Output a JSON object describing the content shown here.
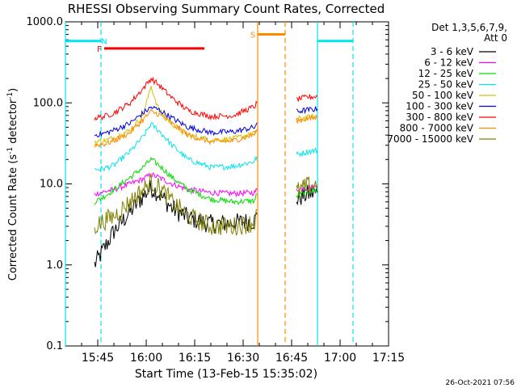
{
  "chart_data": {
    "type": "line",
    "title": "RHESSI Observing Summary Count Rates, Corrected",
    "xlabel": "Start Time (13-Feb-15 15:35:02)",
    "ylabel": "Corrected Count Rate (s^-1 detector^-1)",
    "ylabel_parts": {
      "main": "Corrected Count Rate (s",
      "sup1": "-1",
      "mid": " detector",
      "sup2": "-1",
      "end": ")"
    },
    "x_unit": "minutes since 15:35:02",
    "xlim": [
      0,
      100
    ],
    "ylim": [
      0.1,
      1000
    ],
    "yscale": "log",
    "x_ticks": [
      {
        "value": 10,
        "label": "15:45"
      },
      {
        "value": 25,
        "label": "16:00"
      },
      {
        "value": 40,
        "label": "16:15"
      },
      {
        "value": 55,
        "label": "16:30"
      },
      {
        "value": 70,
        "label": "16:45"
      },
      {
        "value": 85,
        "label": "17:00"
      },
      {
        "value": 100,
        "label": "17:15"
      }
    ],
    "y_ticks": [
      {
        "value": 0.1,
        "label": "0.1"
      },
      {
        "value": 1,
        "label": "1.0"
      },
      {
        "value": 10,
        "label": "10.0"
      },
      {
        "value": 100,
        "label": "100.0"
      },
      {
        "value": 1000,
        "label": "1000.0"
      }
    ],
    "legend": {
      "placement": "right",
      "header": [
        "Det 1,3,5,6,7,9,",
        "Att 0"
      ]
    },
    "series": [
      {
        "name": "3 - 6 keV",
        "color": "#000000",
        "points": [
          [
            9,
            1.0
          ],
          [
            12,
            1.6
          ],
          [
            15,
            2.6
          ],
          [
            20,
            4.5
          ],
          [
            24,
            7
          ],
          [
            26.5,
            9
          ],
          [
            29,
            7.5
          ],
          [
            33,
            5
          ],
          [
            38,
            3.8
          ],
          [
            45,
            3.2
          ],
          [
            52,
            3.3
          ],
          [
            58.5,
            3.5
          ],
          [
            59.3,
            4.2
          ],
          [
            70,
            null
          ],
          [
            71.5,
            6.5
          ],
          [
            75,
            7.5
          ],
          [
            78,
            7.8
          ],
          [
            80,
            null
          ]
        ]
      },
      {
        "name": "6 - 12 keV",
        "color": "#ff00ff",
        "points": [
          [
            9,
            7.5
          ],
          [
            12,
            8
          ],
          [
            15,
            8.5
          ],
          [
            20,
            10
          ],
          [
            24,
            11.5
          ],
          [
            26.5,
            13
          ],
          [
            29,
            12
          ],
          [
            33,
            10
          ],
          [
            38,
            8.5
          ],
          [
            45,
            7.8
          ],
          [
            52,
            7.6
          ],
          [
            58.5,
            7.8
          ],
          [
            59.3,
            8.5
          ],
          [
            70,
            null
          ],
          [
            71.5,
            8.5
          ],
          [
            75,
            9
          ],
          [
            78,
            9.2
          ],
          [
            80,
            null
          ]
        ]
      },
      {
        "name": "12 - 25 keV",
        "color": "#00dd00",
        "points": [
          [
            9,
            6
          ],
          [
            12,
            7
          ],
          [
            15,
            8.5
          ],
          [
            20,
            12
          ],
          [
            24,
            16
          ],
          [
            26.5,
            20
          ],
          [
            29,
            17
          ],
          [
            33,
            12
          ],
          [
            38,
            8.5
          ],
          [
            45,
            6.5
          ],
          [
            52,
            6
          ],
          [
            58.5,
            6.2
          ],
          [
            59.3,
            7.5
          ],
          [
            70,
            null
          ],
          [
            71.5,
            7
          ],
          [
            75,
            8
          ],
          [
            78,
            8.5
          ],
          [
            80,
            null
          ]
        ]
      },
      {
        "name": "25 - 50 keV",
        "color": "#00e5ee",
        "points": [
          [
            9,
            15
          ],
          [
            12,
            15.5
          ],
          [
            15,
            17
          ],
          [
            20,
            25
          ],
          [
            24,
            38
          ],
          [
            26.5,
            55
          ],
          [
            29,
            45
          ],
          [
            33,
            30
          ],
          [
            38,
            20
          ],
          [
            45,
            16
          ],
          [
            52,
            16.5
          ],
          [
            58.5,
            19
          ],
          [
            59.3,
            22
          ],
          [
            70,
            null
          ],
          [
            71.5,
            23
          ],
          [
            75,
            25
          ],
          [
            78,
            26
          ],
          [
            80,
            null
          ]
        ]
      },
      {
        "name": "50 - 100 keV",
        "color": "#d4c400",
        "points": [
          [
            9,
            33
          ],
          [
            12,
            34
          ],
          [
            15,
            37
          ],
          [
            20,
            46
          ],
          [
            24,
            70
          ],
          [
            26.5,
            160
          ],
          [
            27.5,
            120
          ],
          [
            29,
            80
          ],
          [
            33,
            55
          ],
          [
            38,
            40
          ],
          [
            45,
            35
          ],
          [
            52,
            36
          ],
          [
            58.5,
            42
          ],
          [
            59.3,
            47
          ],
          [
            70,
            null
          ],
          [
            71.5,
            63
          ],
          [
            75,
            66
          ],
          [
            78,
            68
          ],
          [
            80,
            null
          ]
        ]
      },
      {
        "name": "100 - 300 keV",
        "color": "#0000dd",
        "points": [
          [
            9,
            40
          ],
          [
            12,
            42
          ],
          [
            15,
            46
          ],
          [
            20,
            56
          ],
          [
            24,
            75
          ],
          [
            26.5,
            88
          ],
          [
            29,
            82
          ],
          [
            33,
            65
          ],
          [
            38,
            50
          ],
          [
            45,
            43
          ],
          [
            52,
            44
          ],
          [
            58.5,
            50
          ],
          [
            59.3,
            57
          ],
          [
            70,
            null
          ],
          [
            71.5,
            78
          ],
          [
            75,
            82
          ],
          [
            78,
            84
          ],
          [
            80,
            null
          ]
        ]
      },
      {
        "name": "300 - 800 keV",
        "color": "#ff0000",
        "points": [
          [
            9,
            65
          ],
          [
            12,
            68
          ],
          [
            15,
            75
          ],
          [
            20,
            100
          ],
          [
            24,
            150
          ],
          [
            26.5,
            200
          ],
          [
            29,
            165
          ],
          [
            33,
            115
          ],
          [
            38,
            80
          ],
          [
            45,
            68
          ],
          [
            52,
            70
          ],
          [
            58.5,
            90
          ],
          [
            59.3,
            100
          ],
          [
            70,
            null
          ],
          [
            71.5,
            110
          ],
          [
            75,
            118
          ],
          [
            78,
            120
          ],
          [
            80,
            null
          ]
        ]
      },
      {
        "name": "800 - 7000 keV",
        "color": "#ff8800",
        "points": [
          [
            9,
            30
          ],
          [
            12,
            31
          ],
          [
            15,
            34
          ],
          [
            20,
            43
          ],
          [
            24,
            62
          ],
          [
            26.5,
            78
          ],
          [
            29,
            72
          ],
          [
            33,
            55
          ],
          [
            38,
            40
          ],
          [
            45,
            33
          ],
          [
            52,
            34
          ],
          [
            58.5,
            41
          ],
          [
            59.3,
            47
          ],
          [
            70,
            null
          ],
          [
            71.5,
            60
          ],
          [
            75,
            64
          ],
          [
            78,
            66
          ],
          [
            80,
            null
          ]
        ]
      },
      {
        "name": "7000 - 15000 keV",
        "color": "#808000",
        "points": [
          [
            9,
            3
          ],
          [
            12,
            3.5
          ],
          [
            15,
            4
          ],
          [
            20,
            6
          ],
          [
            24,
            8.5
          ],
          [
            26.5,
            10.5
          ],
          [
            29,
            9
          ],
          [
            33,
            6
          ],
          [
            38,
            4
          ],
          [
            45,
            3
          ],
          [
            52,
            3
          ],
          [
            58.5,
            3.3
          ],
          [
            59.3,
            4.8
          ],
          [
            70,
            null
          ],
          [
            71.5,
            8
          ],
          [
            75,
            9.5
          ],
          [
            78,
            9.8
          ],
          [
            80,
            null
          ]
        ]
      }
    ],
    "flags": [
      {
        "label": "N",
        "color": "#00e5ee",
        "x_start": 0,
        "x_end": 11,
        "level": 580,
        "label_x": 12
      },
      {
        "label": "N",
        "color": "#00e5ee",
        "x_start": 78,
        "x_end": 89,
        "level": 580,
        "label_x": null
      },
      {
        "label": "F",
        "color": "#ff0000",
        "x_start": 12,
        "x_end": 43,
        "level": 470,
        "label_x": 10.5
      },
      {
        "label": "S",
        "color": "#ff8800",
        "x_start": 59.5,
        "x_end": 68,
        "level": 700,
        "label_x": 58
      }
    ],
    "vlines": [
      {
        "x": 0,
        "color": "#00e5ee",
        "style": "solid"
      },
      {
        "x": 11,
        "color": "#00e5ee",
        "style": "dashed"
      },
      {
        "x": 59.5,
        "color": "#ff8800",
        "style": "solid"
      },
      {
        "x": 68,
        "color": "#ff8800",
        "style": "dashed"
      },
      {
        "x": 78,
        "color": "#00e5ee",
        "style": "solid"
      },
      {
        "x": 89,
        "color": "#00e5ee",
        "style": "dashed"
      }
    ]
  },
  "footer": {
    "timestamp": "26-Oct-2021 07:56"
  }
}
